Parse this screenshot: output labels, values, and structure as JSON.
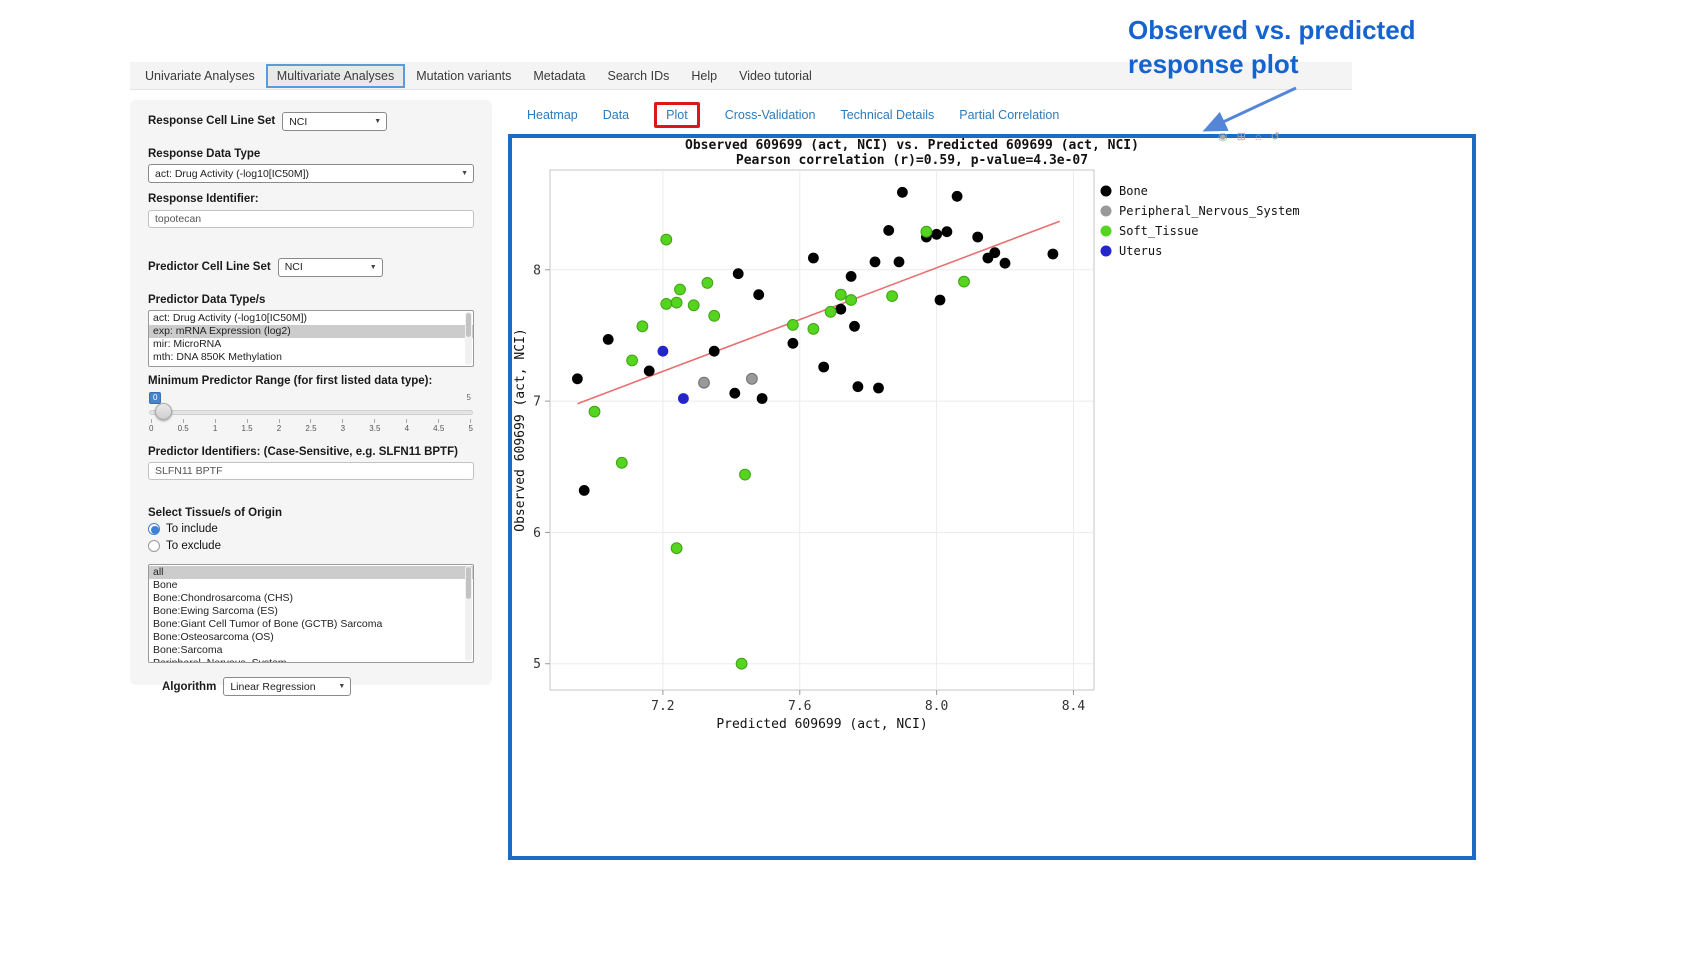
{
  "annotation": {
    "line1": "Observed  vs. predicted",
    "line2": "response plot"
  },
  "nav_tabs": [
    {
      "label": "Univariate Analyses",
      "active": false
    },
    {
      "label": "Multivariate Analyses",
      "active": true
    },
    {
      "label": "Mutation variants",
      "active": false
    },
    {
      "label": "Metadata",
      "active": false
    },
    {
      "label": "Search IDs",
      "active": false
    },
    {
      "label": "Help",
      "active": false
    },
    {
      "label": "Video tutorial",
      "active": false
    }
  ],
  "subtabs": [
    {
      "label": "Heatmap",
      "highlighted": false
    },
    {
      "label": "Data",
      "highlighted": false
    },
    {
      "label": "Plot",
      "highlighted": true
    },
    {
      "label": "Cross-Validation",
      "highlighted": false
    },
    {
      "label": "Technical Details",
      "highlighted": false
    },
    {
      "label": "Partial Correlation",
      "highlighted": false
    }
  ],
  "sidebar": {
    "response_cell_line_set": {
      "label": "Response Cell Line Set",
      "value": "NCI"
    },
    "response_data_type": {
      "label": "Response Data Type",
      "value": "act: Drug Activity (-log10[IC50M])"
    },
    "response_identifier": {
      "label": "Response Identifier:",
      "value": "topotecan"
    },
    "predictor_cell_line_set": {
      "label": "Predictor Cell Line Set",
      "value": "NCI"
    },
    "predictor_data_types": {
      "label": "Predictor Data Type/s",
      "options": [
        "act: Drug Activity (-log10[IC50M])",
        "exp: mRNA Expression (log2)",
        "mir: MicroRNA",
        "mth: DNA 850K Methylation"
      ],
      "selected": "exp: mRNA Expression (log2)"
    },
    "min_predictor_range": {
      "label": "Minimum Predictor Range (for first listed data type):",
      "value": "0",
      "max_label": "5",
      "ticks": [
        "0",
        "0.5",
        "1",
        "1.5",
        "2",
        "2.5",
        "3",
        "3.5",
        "4",
        "4.5",
        "5"
      ]
    },
    "predictor_identifiers": {
      "label": "Predictor Identifiers: (Case-Sensitive, e.g. SLFN11 BPTF)",
      "value": "SLFN11 BPTF"
    },
    "tissue_origin": {
      "label": "Select Tissue/s of Origin",
      "radios": [
        {
          "label": "To include",
          "selected": true
        },
        {
          "label": "To exclude",
          "selected": false
        }
      ],
      "options": [
        "all",
        "Bone",
        "Bone:Chondrosarcoma (CHS)",
        "Bone:Ewing Sarcoma (ES)",
        "Bone:Giant Cell Tumor of Bone (GCTB) Sarcoma",
        "Bone:Osteosarcoma (OS)",
        "Bone:Sarcoma",
        "Peripheral_Nervous_System"
      ],
      "selected": "all"
    },
    "algorithm": {
      "label": "Algorithm",
      "value": "Linear Regression"
    }
  },
  "modebar": {
    "icons": [
      {
        "name": "camera-icon",
        "glyph": "◉"
      },
      {
        "name": "zoom-icon",
        "glyph": "⊞"
      },
      {
        "name": "home-icon",
        "glyph": "⌂"
      },
      {
        "name": "reset-axes-icon",
        "glyph": "↺"
      }
    ]
  },
  "chart_data": {
    "type": "scatter",
    "title": "Observed 609699 (act, NCI) vs. Predicted 609699 (act, NCI)",
    "subtitle": "Pearson correlation (r)=0.59, p-value=4.3e-07",
    "xlabel": "Predicted 609699 (act, NCI)",
    "ylabel": "Observed 609699 (act, NCI)",
    "xlim": [
      6.87,
      8.46
    ],
    "ylim": [
      4.8,
      8.76
    ],
    "xticks": [
      "7.2",
      "7.6",
      "8.0",
      "8.4"
    ],
    "yticks": [
      "5",
      "6",
      "7",
      "8"
    ],
    "grid": true,
    "legend_position": "right",
    "trend_line": {
      "color": "#e87070",
      "x1": 6.95,
      "y1": 6.98,
      "x2": 8.36,
      "y2": 8.37
    },
    "series": [
      {
        "name": "Bone",
        "color": "#000000",
        "points": [
          [
            6.95,
            7.17
          ],
          [
            6.97,
            6.32
          ],
          [
            7.04,
            7.47
          ],
          [
            7.16,
            7.23
          ],
          [
            7.35,
            7.38
          ],
          [
            7.41,
            7.06
          ],
          [
            7.42,
            7.97
          ],
          [
            7.48,
            7.81
          ],
          [
            7.49,
            7.02
          ],
          [
            7.58,
            7.44
          ],
          [
            7.64,
            8.09
          ],
          [
            7.67,
            7.26
          ],
          [
            7.72,
            7.7
          ],
          [
            7.75,
            7.95
          ],
          [
            7.76,
            7.57
          ],
          [
            7.77,
            7.11
          ],
          [
            7.82,
            8.06
          ],
          [
            7.83,
            7.1
          ],
          [
            7.86,
            8.3
          ],
          [
            7.89,
            8.06
          ],
          [
            7.9,
            8.59
          ],
          [
            7.97,
            8.25
          ],
          [
            8.0,
            8.27
          ],
          [
            8.01,
            7.77
          ],
          [
            8.03,
            8.29
          ],
          [
            8.06,
            8.56
          ],
          [
            8.12,
            8.25
          ],
          [
            8.15,
            8.09
          ],
          [
            8.17,
            8.13
          ],
          [
            8.2,
            8.05
          ],
          [
            8.34,
            8.12
          ]
        ]
      },
      {
        "name": "Peripheral_Nervous_System",
        "color": "#999999",
        "edge": "#6f6f6f",
        "points": [
          [
            7.32,
            7.14
          ],
          [
            7.46,
            7.17
          ]
        ]
      },
      {
        "name": "Soft_Tissue",
        "color": "#55d420",
        "edge": "#3fa312",
        "points": [
          [
            7.0,
            6.92
          ],
          [
            7.08,
            6.53
          ],
          [
            7.11,
            7.31
          ],
          [
            7.14,
            7.57
          ],
          [
            7.21,
            8.23
          ],
          [
            7.21,
            7.74
          ],
          [
            7.24,
            7.75
          ],
          [
            7.25,
            7.85
          ],
          [
            7.29,
            7.73
          ],
          [
            7.33,
            7.9
          ],
          [
            7.35,
            7.65
          ],
          [
            7.24,
            5.88
          ],
          [
            7.44,
            6.44
          ],
          [
            7.43,
            5.0
          ],
          [
            7.58,
            7.58
          ],
          [
            7.64,
            7.55
          ],
          [
            7.69,
            7.68
          ],
          [
            7.72,
            7.81
          ],
          [
            7.75,
            7.77
          ],
          [
            7.87,
            7.8
          ],
          [
            7.97,
            8.29
          ],
          [
            8.08,
            7.91
          ]
        ]
      },
      {
        "name": "Uterus",
        "color": "#2525cc",
        "points": [
          [
            7.2,
            7.38
          ],
          [
            7.26,
            7.02
          ]
        ]
      }
    ]
  }
}
